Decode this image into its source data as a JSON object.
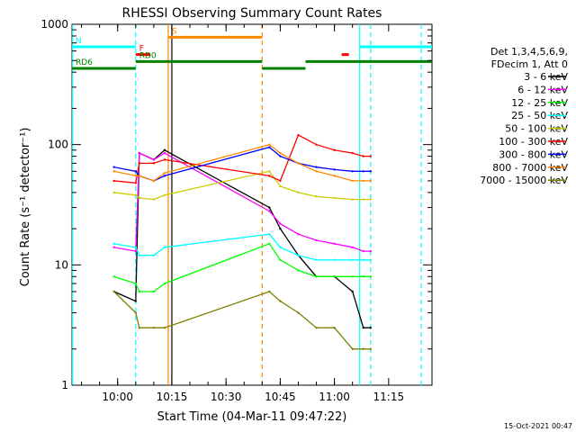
{
  "chart_data": {
    "type": "line",
    "title": "RHESSI Observing Summary Count Rates",
    "xlabel": "Start Time (04-Mar-11 09:47:22)",
    "ylabel": "Count Rate (s⁻¹ detector⁻¹)",
    "y_scale": "log",
    "ylim": [
      1,
      1000
    ],
    "xlim": [
      "09:47:22",
      "11:27:00"
    ],
    "x_ticks": [
      "10:00",
      "10:15",
      "10:30",
      "10:45",
      "11:00",
      "11:15"
    ],
    "y_ticks": [
      "1",
      "10",
      "100",
      "1000"
    ],
    "footer_date": "15-Oct-2021 00:47",
    "legend_position": "right",
    "legend_header": [
      "Det 1,3,4,5,6,9,",
      "FDecim 1, Att 0"
    ],
    "series": [
      {
        "name": "3 - 6 keV",
        "color": "#000000",
        "x": [
          "09:59",
          "10:05",
          "10:06",
          "10:10",
          "10:13",
          "10:42",
          "10:45",
          "10:50",
          "10:55",
          "11:00",
          "11:05",
          "11:08",
          "11:10"
        ],
        "values": [
          6,
          5,
          85,
          75,
          90,
          30,
          20,
          12,
          8,
          8,
          6,
          3,
          3
        ]
      },
      {
        "name": "6 - 12 keV",
        "color": "#ff00ff",
        "x": [
          "09:59",
          "10:05",
          "10:06",
          "10:10",
          "10:13",
          "10:42",
          "10:45",
          "10:50",
          "10:55",
          "11:00",
          "11:05",
          "11:08",
          "11:10"
        ],
        "values": [
          14,
          13,
          85,
          75,
          85,
          28,
          22,
          18,
          16,
          15,
          14,
          13,
          13
        ]
      },
      {
        "name": "12 - 25 keV",
        "color": "#00ff00",
        "x": [
          "09:59",
          "10:05",
          "10:06",
          "10:10",
          "10:13",
          "10:42",
          "10:45",
          "10:50",
          "10:55",
          "11:00",
          "11:05",
          "11:08",
          "11:10"
        ],
        "values": [
          8,
          7,
          6,
          6,
          7,
          15,
          11,
          9,
          8,
          8,
          8,
          8,
          8
        ]
      },
      {
        "name": "25 - 50 keV",
        "color": "#00ffff",
        "x": [
          "09:59",
          "10:05",
          "10:06",
          "10:10",
          "10:13",
          "10:42",
          "10:45",
          "10:50",
          "10:55",
          "11:00",
          "11:05",
          "11:08",
          "11:10"
        ],
        "values": [
          15,
          14,
          12,
          12,
          14,
          18,
          14,
          12,
          11,
          11,
          11,
          11,
          11
        ]
      },
      {
        "name": "50 - 100 keV",
        "color": "#cccc00",
        "x": [
          "09:59",
          "10:05",
          "10:06",
          "10:10",
          "10:13",
          "10:42",
          "10:45",
          "10:50",
          "10:55",
          "11:00",
          "11:05",
          "11:08",
          "11:10"
        ],
        "values": [
          40,
          38,
          36,
          35,
          38,
          60,
          45,
          40,
          37,
          36,
          35,
          35,
          35
        ]
      },
      {
        "name": "100 - 300 keV",
        "color": "#ff0000",
        "x": [
          "09:59",
          "10:05",
          "10:06",
          "10:10",
          "10:13",
          "10:42",
          "10:45",
          "10:50",
          "10:55",
          "11:00",
          "11:05",
          "11:08",
          "11:10"
        ],
        "values": [
          50,
          48,
          70,
          70,
          75,
          55,
          50,
          120,
          100,
          90,
          85,
          80,
          80
        ]
      },
      {
        "name": "300 - 800 keV",
        "color": "#0000ff",
        "x": [
          "09:59",
          "10:05",
          "10:06",
          "10:10",
          "10:13",
          "10:42",
          "10:45",
          "10:50",
          "10:55",
          "11:00",
          "11:05",
          "11:08",
          "11:10"
        ],
        "values": [
          65,
          60,
          55,
          50,
          55,
          95,
          80,
          70,
          65,
          62,
          60,
          60,
          60
        ]
      },
      {
        "name": "800 - 7000 keV",
        "color": "#ff8800",
        "x": [
          "09:59",
          "10:05",
          "10:06",
          "10:10",
          "10:13",
          "10:42",
          "10:45",
          "10:50",
          "10:55",
          "11:00",
          "11:05",
          "11:08",
          "11:10"
        ],
        "values": [
          60,
          55,
          55,
          50,
          58,
          100,
          85,
          70,
          60,
          55,
          50,
          50,
          50
        ]
      },
      {
        "name": "7000 - 15000 keV",
        "color": "#808000",
        "x": [
          "09:59",
          "10:05",
          "10:06",
          "10:10",
          "10:13",
          "10:42",
          "10:45",
          "10:50",
          "10:55",
          "11:00",
          "11:05",
          "11:08",
          "11:10"
        ],
        "values": [
          6,
          4,
          3,
          3,
          3,
          6,
          5,
          4,
          3,
          3,
          2,
          2,
          2
        ]
      }
    ],
    "flag_bars": [
      {
        "label": "N",
        "color": "#00ffff",
        "segments": [
          [
            "09:47:22",
            "10:05"
          ],
          [
            "11:07",
            "11:27"
          ]
        ],
        "level": 650
      },
      {
        "label": "S",
        "color": "#ff8800",
        "segments": [
          [
            "10:14",
            "10:40"
          ]
        ],
        "level": 780
      },
      {
        "label": "F",
        "color": "#ff0000",
        "segments": [
          [
            "10:05",
            "10:09"
          ],
          [
            "11:02",
            "11:04"
          ]
        ],
        "level": 560
      },
      {
        "label": "RD0",
        "color": "#008000",
        "segments": [
          [
            "10:05",
            "10:40"
          ],
          [
            "10:52",
            "11:27"
          ]
        ],
        "level": 490
      },
      {
        "label": "RD6",
        "color": "#008000",
        "segments": [
          [
            "09:47:22",
            "10:05"
          ],
          [
            "10:40",
            "10:52"
          ]
        ],
        "level": 430
      }
    ],
    "vertical_lines": [
      {
        "time": "09:47:30",
        "color": "#00ffff",
        "style": "solid"
      },
      {
        "time": "10:05",
        "color": "#00ffff",
        "style": "dashed"
      },
      {
        "time": "10:14",
        "color": "#ff8800",
        "style": "solid"
      },
      {
        "time": "10:15",
        "color": "#000000",
        "style": "solid"
      },
      {
        "time": "10:40",
        "color": "#ff8800",
        "style": "dashed"
      },
      {
        "time": "11:07",
        "color": "#00ffff",
        "style": "solid"
      },
      {
        "time": "11:10",
        "color": "#00ffff",
        "style": "dashed"
      },
      {
        "time": "11:24",
        "color": "#00ffff",
        "style": "dashed"
      }
    ]
  }
}
